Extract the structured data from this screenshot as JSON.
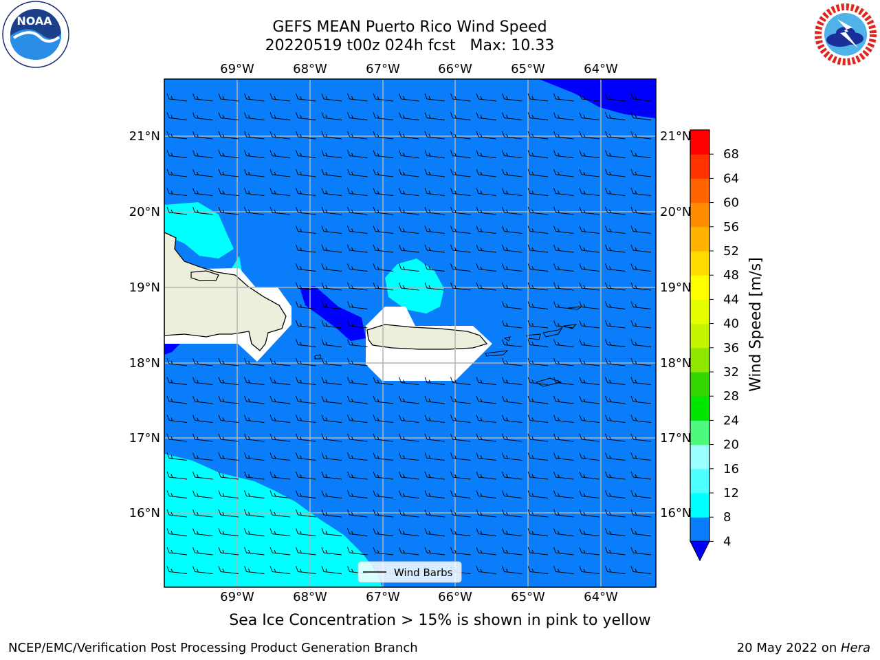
{
  "header": {
    "title_line1": "GEFS MEAN Puerto Rico Wind Speed",
    "title_line2": "20220519 t00z 024h fcst   Max: 10.33"
  },
  "logos": {
    "left": {
      "text": "NOAA",
      "ring_text": "NATIONAL OCEANIC AND ATMOSPHERIC ADMINISTRATION",
      "bottom_text": "U.S. DEPARTMENT OF COMMERCE"
    },
    "right": {
      "ring_text": "NATIONAL WEATHER SERVICE"
    }
  },
  "map": {
    "lon_ticks": [
      "69°W",
      "68°W",
      "67°W",
      "66°W",
      "65°W",
      "64°W"
    ],
    "lat_ticks": [
      "21°N",
      "20°N",
      "19°N",
      "18°N",
      "17°N",
      "16°N"
    ],
    "legend_label": "Wind Barbs"
  },
  "colorbar": {
    "label": "Wind Speed [m/s]",
    "ticks": [
      "4",
      "8",
      "12",
      "16",
      "20",
      "24",
      "28",
      "32",
      "36",
      "40",
      "44",
      "48",
      "52",
      "56",
      "60",
      "64",
      "68"
    ],
    "colors": [
      "#0a7dfa",
      "#00ffff",
      "#4dffff",
      "#99ffff",
      "#4dfa7d",
      "#00e600",
      "#32d600",
      "#8fe600",
      "#c3f500",
      "#e6ff00",
      "#ffff00",
      "#ffdb00",
      "#ffb300",
      "#ff8c00",
      "#ff6400",
      "#ff3200",
      "#ff0000"
    ],
    "under_color": "#0000ff"
  },
  "colors": {
    "base": "#0a7dfa",
    "light": "#00ffff",
    "dark": "#0000ff",
    "land": "#eeeedd",
    "white": "#ffffff"
  },
  "note": "Sea Ice Concentration > 15% is shown in pink to yellow",
  "footer": {
    "left": "NCEP/EMC/Verification Post Processing Product Generation Branch",
    "right_prefix": "20 May 2022 on ",
    "right_italic": "Hera"
  }
}
